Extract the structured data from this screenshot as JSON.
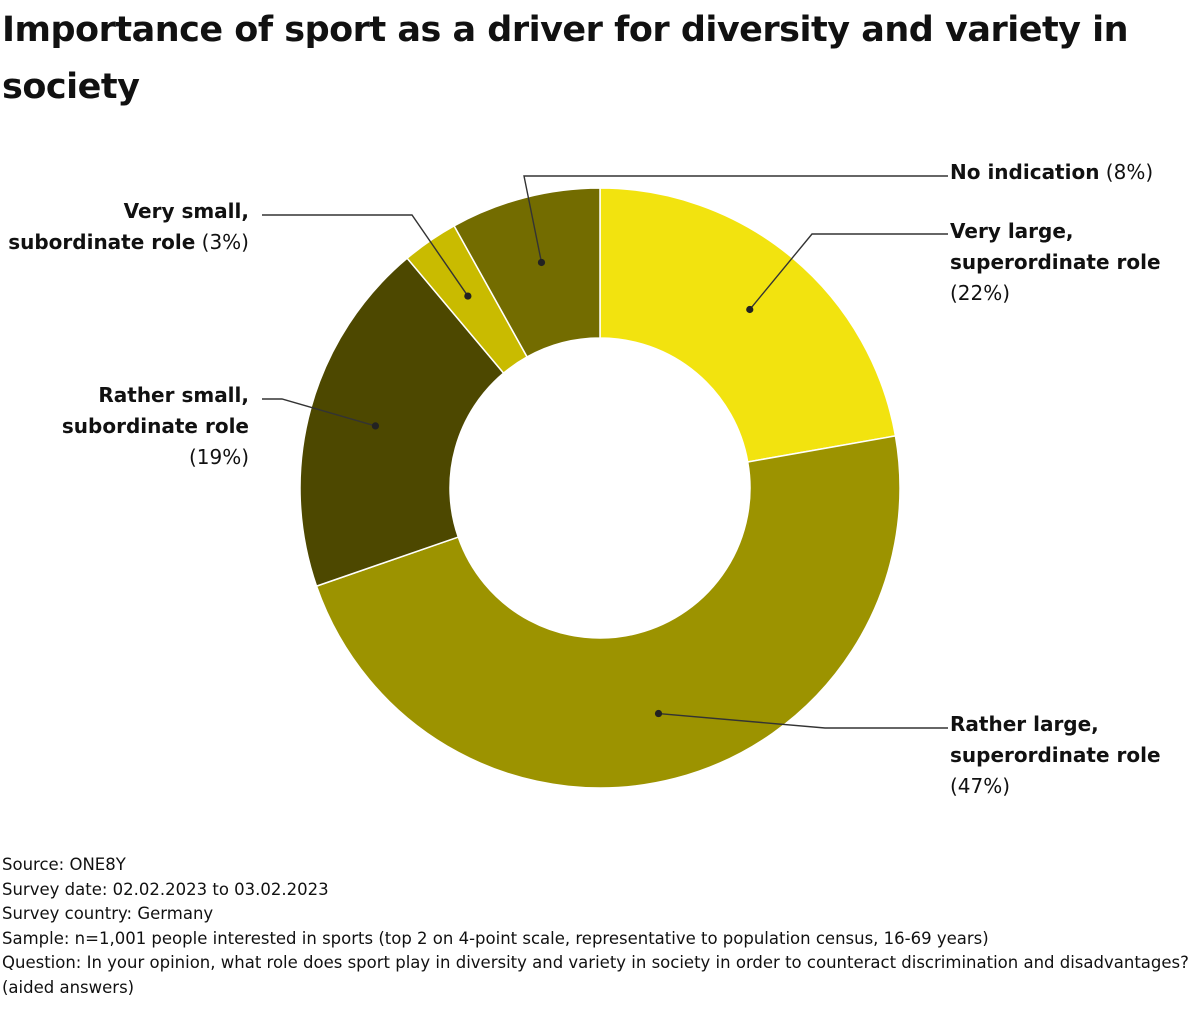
{
  "title": "Importance of sport as a driver for diversity and variety in society",
  "chart_data": {
    "type": "pie",
    "donut": true,
    "start": "top",
    "direction": "clockwise",
    "slices": [
      {
        "label": "Very large, superordinate role",
        "value": 22,
        "value_text": "(22%)",
        "color": "#f2e30f"
      },
      {
        "label": "Rather large, superordinate role",
        "value": 47,
        "value_text": "(47%)",
        "color": "#9c9300"
      },
      {
        "label": "Rather small, subordinate role",
        "value": 19,
        "value_text": "(19%)",
        "color": "#4d4800"
      },
      {
        "label": "Very small, subordinate role",
        "value": 3,
        "value_text": "(3%)",
        "color": "#c9bb00"
      },
      {
        "label": "No indication",
        "value": 8,
        "value_text": "(8%)",
        "color": "#736c00"
      }
    ]
  },
  "footer": {
    "source": "Source: ONE8Y",
    "survey_date": "Survey date: 02.02.2023 to 03.02.2023",
    "survey_country": "Survey country: Germany",
    "sample": "Sample: n=1,001 people interested in sports (top 2 on 4-point scale, representative to population census, 16-69 years)",
    "question": "Question: In your opinion, what role does sport play in diversity and variety in society in order to counteract discrimination and disadvantages? (aided answers)"
  }
}
